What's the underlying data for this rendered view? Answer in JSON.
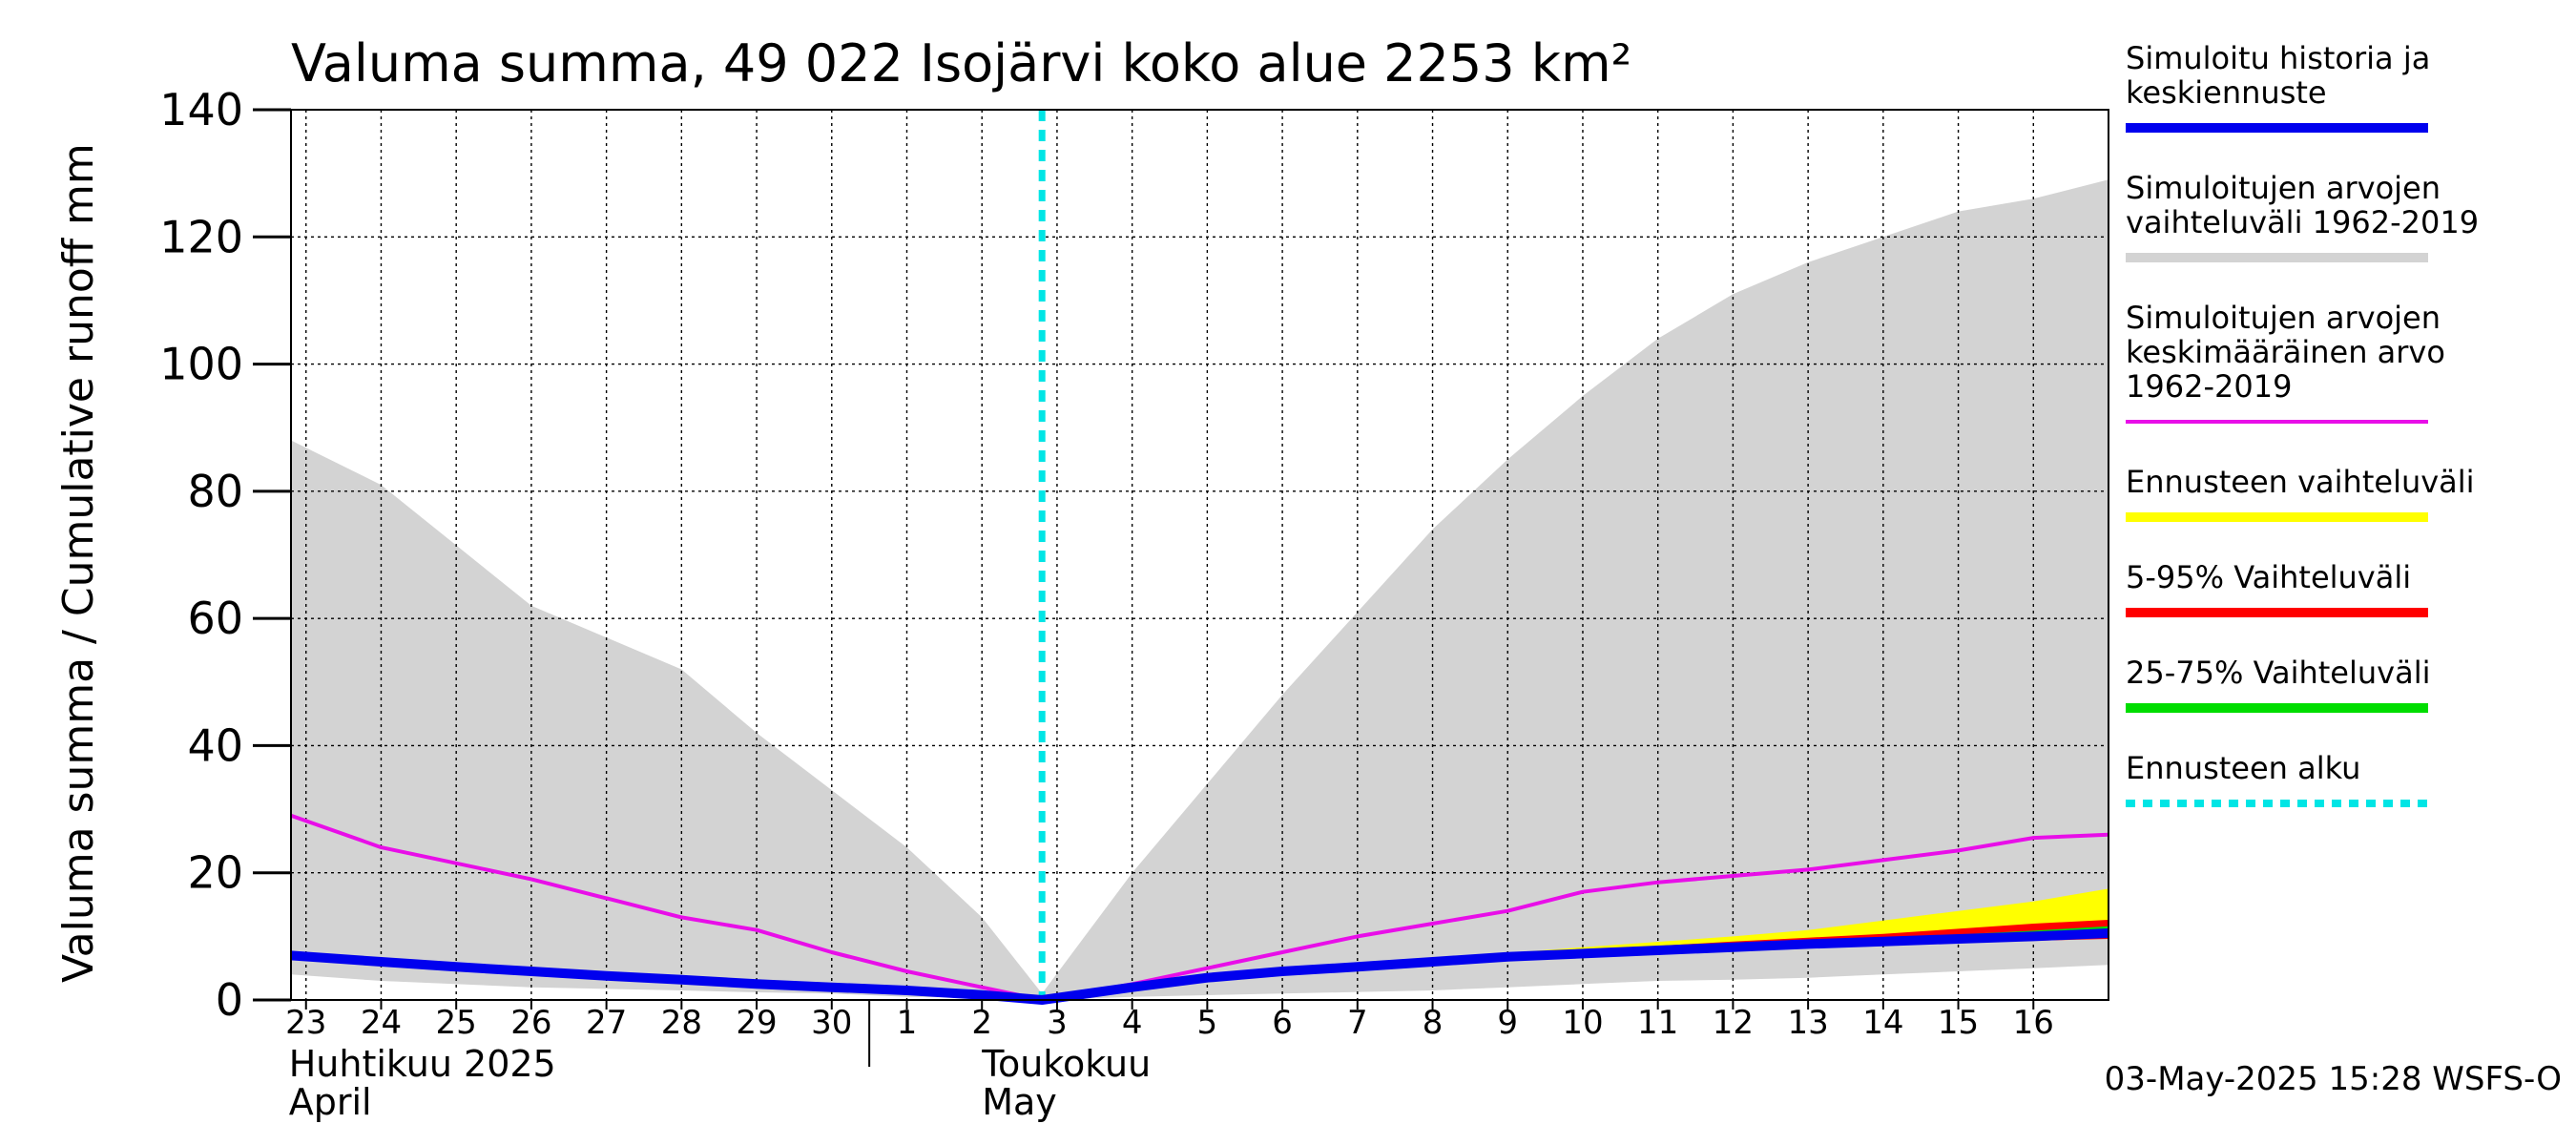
{
  "chart_data": {
    "type": "area",
    "title": "Valuma summa, 49 022 Isojärvi koko alue 2253 km²",
    "ylabel": "Valuma summa / Cumulative runoff    mm",
    "ylim": [
      0,
      140
    ],
    "yticks": [
      0,
      20,
      40,
      60,
      80,
      100,
      120,
      140
    ],
    "xlim": [
      0,
      24
    ],
    "grid": true,
    "legend_position": "right",
    "x_ticks": [
      {
        "x": 0,
        "label": "23"
      },
      {
        "x": 1,
        "label": "24"
      },
      {
        "x": 2,
        "label": "25"
      },
      {
        "x": 3,
        "label": "26"
      },
      {
        "x": 4,
        "label": "27"
      },
      {
        "x": 5,
        "label": "28"
      },
      {
        "x": 6,
        "label": "29"
      },
      {
        "x": 7,
        "label": "30"
      },
      {
        "x": 8,
        "label": "1"
      },
      {
        "x": 9,
        "label": "2"
      },
      {
        "x": 10,
        "label": "3"
      },
      {
        "x": 11,
        "label": "4"
      },
      {
        "x": 12,
        "label": "5"
      },
      {
        "x": 13,
        "label": "6"
      },
      {
        "x": 14,
        "label": "7"
      },
      {
        "x": 15,
        "label": "8"
      },
      {
        "x": 16,
        "label": "9"
      },
      {
        "x": 17,
        "label": "10"
      },
      {
        "x": 18,
        "label": "11"
      },
      {
        "x": 19,
        "label": "12"
      },
      {
        "x": 20,
        "label": "13"
      },
      {
        "x": 21,
        "label": "14"
      },
      {
        "x": 22,
        "label": "15"
      },
      {
        "x": 23,
        "label": "16"
      }
    ],
    "month_labels": [
      {
        "x": 0,
        "fi": "Huhtikuu  2025",
        "en": "April"
      },
      {
        "x": 9,
        "fi": "Toukokuu",
        "en": "May"
      }
    ],
    "forecast_start_x": 9.8,
    "range_band": {
      "name": "Simuloitujen arvojen vaihteluväli 1962-2019",
      "color": "#d3d3d3",
      "x": [
        -0.2,
        1,
        3,
        5,
        6,
        7,
        8,
        9,
        9.8,
        11,
        13,
        15,
        16,
        17,
        18,
        19,
        20,
        21,
        22,
        23,
        24
      ],
      "upper": [
        88,
        81,
        62,
        52,
        42,
        33,
        24,
        13,
        1,
        20,
        48,
        74,
        85,
        95,
        104,
        111,
        116,
        120,
        124,
        126,
        129
      ],
      "lower": [
        4,
        3,
        2,
        1.5,
        1.2,
        1,
        0.5,
        0.3,
        0,
        0.5,
        1,
        1.5,
        2,
        2.5,
        3,
        3.2,
        3.5,
        4,
        4.5,
        5,
        5.5
      ]
    },
    "series": [
      {
        "name": "Simuloitujen arvojen keskimääräinen arvo 1962-2019",
        "color": "#e80ee8",
        "x": [
          -0.2,
          1,
          3,
          5,
          6,
          7,
          8,
          9,
          9.8,
          11,
          12,
          13,
          14,
          15,
          16,
          17,
          18,
          19,
          20,
          21,
          22,
          23,
          24
        ],
        "y": [
          29,
          24,
          19,
          13,
          11,
          7.5,
          4.5,
          2,
          0,
          2.5,
          5,
          7.5,
          10,
          12,
          14,
          17,
          18.5,
          19.5,
          20.5,
          22,
          23.5,
          25.5,
          26
        ]
      },
      {
        "name": "Simuloitu historia ja keskiennuste",
        "color": "#0000ee",
        "x": [
          -0.2,
          1,
          2,
          3,
          4,
          5,
          6,
          7,
          8,
          9,
          9.8,
          11,
          12,
          13,
          14,
          15,
          16,
          17,
          18,
          19,
          20,
          21,
          22,
          23,
          24
        ],
        "y": [
          7,
          6,
          5.2,
          4.5,
          3.8,
          3.2,
          2.5,
          2,
          1.5,
          0.8,
          0,
          2,
          3.5,
          4.5,
          5.2,
          6,
          6.8,
          7.3,
          7.8,
          8.3,
          8.8,
          9.2,
          9.6,
          10,
          10.5
        ]
      }
    ],
    "forecast_bands": [
      {
        "name": "Ennusteen vaihteluväli",
        "color": "#ffff00",
        "x": [
          9.8,
          12,
          15,
          17,
          19,
          20,
          21,
          22,
          23,
          24
        ],
        "upper": [
          0,
          3.8,
          6.5,
          8.3,
          10,
          11,
          12.5,
          14,
          15.5,
          17.5
        ],
        "lower": [
          0,
          3.3,
          6,
          7.3,
          8,
          8.5,
          8.8,
          9.2,
          9.5,
          9.8
        ]
      },
      {
        "name": "5-95% Vaihteluväli",
        "color": "#ff0000",
        "x": [
          9.8,
          12,
          15,
          17,
          19,
          20,
          21,
          22,
          23,
          24
        ],
        "upper": [
          0,
          3.7,
          6.4,
          7.8,
          9.2,
          9.8,
          10.4,
          11.2,
          12,
          12.6
        ],
        "lower": [
          0,
          3.3,
          6,
          7.3,
          8,
          8.5,
          8.8,
          9,
          9.3,
          9.6
        ]
      },
      {
        "name": "25-75% Vaihteluväli",
        "color": "#00dd00",
        "x": [
          9.8,
          12,
          15,
          17,
          19,
          20,
          21,
          22,
          23,
          24
        ],
        "upper": [
          0,
          3.6,
          6.3,
          7.6,
          8.7,
          9.2,
          9.7,
          10.3,
          10.9,
          11.6
        ],
        "lower": [
          0,
          3.4,
          6,
          7.3,
          8.1,
          8.6,
          9,
          9.4,
          9.8,
          10.2
        ]
      }
    ],
    "legend": [
      {
        "label": [
          "Simuloitu historia ja",
          "keskiennuste"
        ],
        "color": "#0000ee",
        "style": "solid"
      },
      {
        "label": [
          "Simuloitujen arvojen",
          "vaihteluväli 1962-2019"
        ],
        "color": "#d3d3d3",
        "style": "solid"
      },
      {
        "label": [
          "Simuloitujen arvojen",
          "keskimääräinen arvo",
          "   1962-2019"
        ],
        "color": "#e80ee8",
        "style": "thin"
      },
      {
        "label": [
          "Ennusteen vaihteluväli"
        ],
        "color": "#ffff00",
        "style": "solid"
      },
      {
        "label": [
          "5-95% Vaihteluväli"
        ],
        "color": "#ff0000",
        "style": "solid"
      },
      {
        "label": [
          "25-75% Vaihteluväli"
        ],
        "color": "#00dd00",
        "style": "solid"
      },
      {
        "label": [
          "Ennusteen alku"
        ],
        "color": "#00e5e5",
        "style": "dotted"
      }
    ],
    "footer": "03-May-2025 15:28 WSFS-O"
  }
}
